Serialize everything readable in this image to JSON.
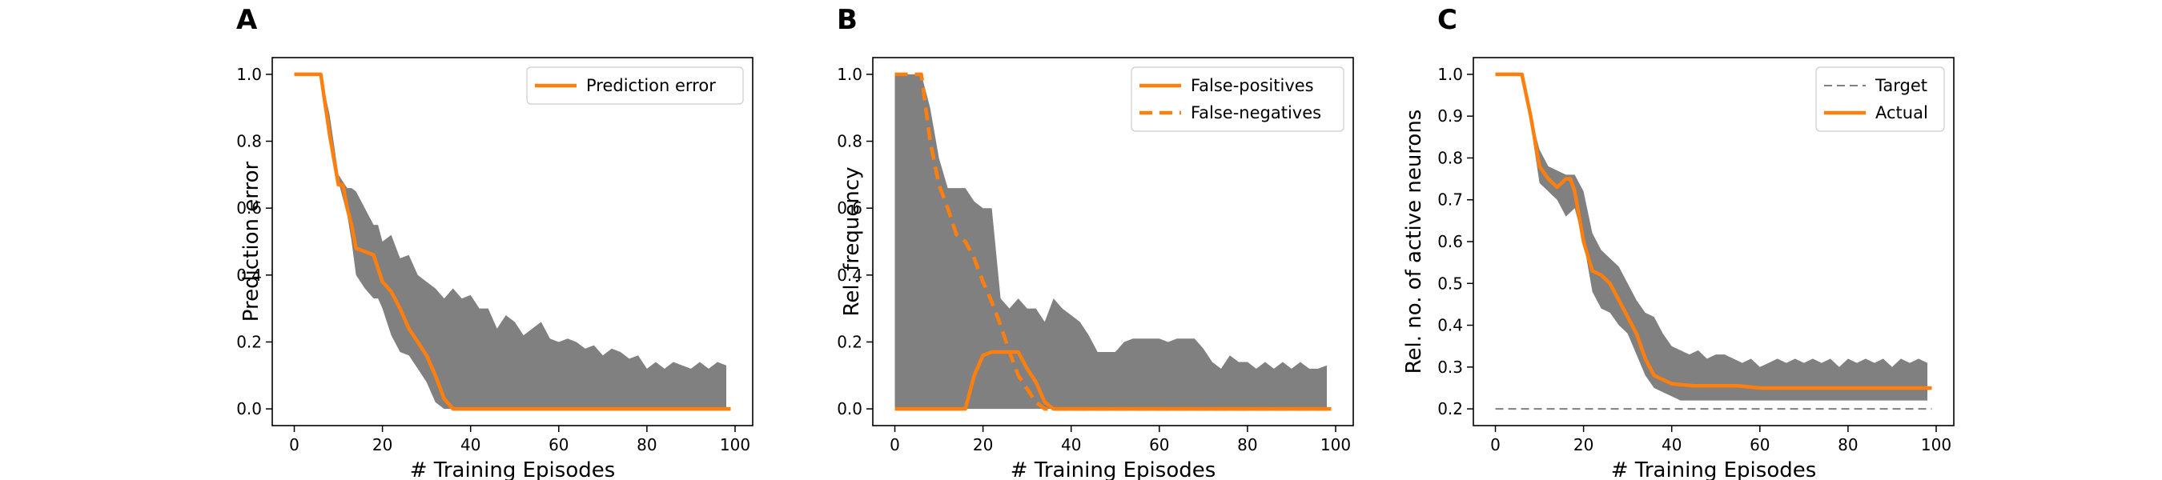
{
  "colors": {
    "line": "#ff7f0e",
    "band": "#808080",
    "target": "#808080",
    "axis": "#000000"
  },
  "chart_data": [
    {
      "type": "line",
      "panel": "A",
      "title": "",
      "xlabel": "# Training Episodes",
      "ylabel": "Prediction error",
      "xlim": [
        -5,
        104
      ],
      "ylim": [
        -0.05,
        1.05
      ],
      "xticks": [
        0,
        20,
        40,
        60,
        80,
        100
      ],
      "yticks": [
        0.0,
        0.2,
        0.4,
        0.6,
        0.8,
        1.0
      ],
      "ytick_labels": [
        "0.0",
        "0.2",
        "0.4",
        "0.6",
        "0.8",
        "1.0"
      ],
      "grid": false,
      "legend": {
        "position": "top-right",
        "entries": [
          {
            "label": "Prediction error",
            "style": "solid"
          }
        ]
      },
      "band": {
        "x": [
          0,
          6,
          8,
          10,
          12,
          13,
          14,
          16,
          18,
          19,
          20,
          22,
          24,
          26,
          28,
          30,
          32,
          34,
          36,
          38,
          40,
          42,
          44,
          46,
          48,
          50,
          52,
          54,
          56,
          58,
          60,
          62,
          64,
          66,
          68,
          70,
          72,
          74,
          76,
          78,
          80,
          82,
          84,
          86,
          88,
          90,
          92,
          94,
          96,
          98
        ],
        "upper": [
          1.0,
          1.0,
          0.88,
          0.7,
          0.66,
          0.66,
          0.65,
          0.6,
          0.55,
          0.55,
          0.5,
          0.52,
          0.45,
          0.46,
          0.4,
          0.38,
          0.36,
          0.33,
          0.36,
          0.33,
          0.34,
          0.3,
          0.3,
          0.24,
          0.28,
          0.26,
          0.22,
          0.24,
          0.26,
          0.21,
          0.2,
          0.21,
          0.2,
          0.18,
          0.19,
          0.16,
          0.18,
          0.17,
          0.15,
          0.16,
          0.12,
          0.14,
          0.12,
          0.14,
          0.13,
          0.12,
          0.14,
          0.12,
          0.14,
          0.13
        ],
        "lower": [
          1.0,
          1.0,
          0.85,
          0.68,
          0.58,
          0.5,
          0.4,
          0.36,
          0.33,
          0.33,
          0.3,
          0.22,
          0.17,
          0.16,
          0.12,
          0.08,
          0.02,
          0.0,
          0.0,
          0.0,
          0.0,
          0.0,
          0.0,
          0.0,
          0.0,
          0.0,
          0.0,
          0.0,
          0.0,
          0.0,
          0.0,
          0.0,
          0.0,
          0.0,
          0.0,
          0.0,
          0.0,
          0.0,
          0.0,
          0.0,
          0.0,
          0.0,
          0.0,
          0.0,
          0.0,
          0.0,
          0.0,
          0.0,
          0.0,
          0.0
        ]
      },
      "series": [
        {
          "name": "Prediction error",
          "style": "solid",
          "x": [
            0,
            6,
            8,
            10,
            11,
            12,
            13,
            14,
            16,
            18,
            19,
            20,
            22,
            24,
            26,
            28,
            30,
            32,
            34,
            36,
            38,
            40,
            50,
            60,
            70,
            80,
            90,
            99
          ],
          "y": [
            1.0,
            1.0,
            0.82,
            0.67,
            0.67,
            0.6,
            0.55,
            0.48,
            0.47,
            0.46,
            0.42,
            0.38,
            0.35,
            0.3,
            0.24,
            0.2,
            0.16,
            0.1,
            0.03,
            0.0,
            0.0,
            0.0,
            0.0,
            0.0,
            0.0,
            0.0,
            0.0,
            0.0
          ]
        }
      ]
    },
    {
      "type": "line",
      "panel": "B",
      "title": "",
      "xlabel": "# Training Episodes",
      "ylabel": "Rel. frequency",
      "xlim": [
        -5,
        104
      ],
      "ylim": [
        -0.05,
        1.05
      ],
      "xticks": [
        0,
        20,
        40,
        60,
        80,
        100
      ],
      "yticks": [
        0.0,
        0.2,
        0.4,
        0.6,
        0.8,
        1.0
      ],
      "ytick_labels": [
        "0.0",
        "0.2",
        "0.4",
        "0.6",
        "0.8",
        "1.0"
      ],
      "grid": false,
      "legend": {
        "position": "top-right",
        "entries": [
          {
            "label": "False-positives",
            "style": "solid"
          },
          {
            "label": "False-negatives",
            "style": "dashed"
          }
        ]
      },
      "band": {
        "x": [
          0,
          6,
          8,
          10,
          12,
          14,
          16,
          18,
          20,
          22,
          24,
          26,
          28,
          30,
          32,
          34,
          36,
          38,
          40,
          42,
          44,
          46,
          48,
          50,
          52,
          54,
          56,
          58,
          60,
          62,
          64,
          66,
          68,
          70,
          72,
          74,
          76,
          78,
          80,
          82,
          84,
          86,
          88,
          90,
          92,
          94,
          96,
          98
        ],
        "upper": [
          1.0,
          1.0,
          0.9,
          0.75,
          0.66,
          0.66,
          0.66,
          0.62,
          0.6,
          0.6,
          0.33,
          0.3,
          0.33,
          0.3,
          0.3,
          0.26,
          0.33,
          0.3,
          0.28,
          0.26,
          0.22,
          0.17,
          0.17,
          0.17,
          0.2,
          0.21,
          0.21,
          0.21,
          0.21,
          0.2,
          0.21,
          0.21,
          0.21,
          0.18,
          0.14,
          0.12,
          0.16,
          0.14,
          0.14,
          0.12,
          0.14,
          0.12,
          0.14,
          0.12,
          0.14,
          0.12,
          0.12,
          0.13
        ],
        "lower": [
          0.0,
          0.0,
          0.0,
          0.0,
          0.0,
          0.0,
          0.0,
          0.0,
          0.0,
          0.0,
          0.0,
          0.0,
          0.0,
          0.0,
          0.0,
          0.0,
          0.0,
          0.0,
          0.0,
          0.0,
          0.0,
          0.0,
          0.0,
          0.0,
          0.0,
          0.0,
          0.0,
          0.0,
          0.0,
          0.0,
          0.0,
          0.0,
          0.0,
          0.0,
          0.0,
          0.0,
          0.0,
          0.0,
          0.0,
          0.0,
          0.0,
          0.0,
          0.0,
          0.0,
          0.0,
          0.0,
          0.0,
          0.0
        ]
      },
      "series": [
        {
          "name": "False-positives",
          "style": "solid",
          "x": [
            0,
            16,
            18,
            20,
            22,
            28,
            30,
            32,
            34,
            36,
            38,
            99
          ],
          "y": [
            0.0,
            0.0,
            0.1,
            0.16,
            0.17,
            0.17,
            0.12,
            0.08,
            0.02,
            0.0,
            0.0,
            0.0
          ]
        },
        {
          "name": "False-negatives",
          "style": "dashed",
          "x": [
            0,
            6,
            8,
            10,
            12,
            14,
            16,
            18,
            20,
            22,
            24,
            26,
            28,
            30,
            32,
            34,
            36,
            99
          ],
          "y": [
            1.0,
            1.0,
            0.8,
            0.67,
            0.6,
            0.52,
            0.5,
            0.45,
            0.38,
            0.32,
            0.25,
            0.17,
            0.1,
            0.06,
            0.02,
            0.0,
            0.0,
            0.0
          ]
        }
      ]
    },
    {
      "type": "line",
      "panel": "C",
      "title": "",
      "xlabel": "# Training Episodes",
      "ylabel": "Rel. no. of active neurons",
      "xlim": [
        -5,
        104
      ],
      "ylim": [
        0.16,
        1.04
      ],
      "xticks": [
        0,
        20,
        40,
        60,
        80,
        100
      ],
      "yticks": [
        0.2,
        0.3,
        0.4,
        0.5,
        0.6,
        0.7,
        0.8,
        0.9,
        1.0
      ],
      "ytick_labels": [
        "0.2",
        "0.3",
        "0.4",
        "0.5",
        "0.6",
        "0.7",
        "0.8",
        "0.9",
        "1.0"
      ],
      "grid": false,
      "legend": {
        "position": "top-right",
        "entries": [
          {
            "label": "Target",
            "style": "dashed"
          },
          {
            "label": "Actual",
            "style": "solid"
          }
        ]
      },
      "band": {
        "x": [
          0,
          6,
          8,
          10,
          12,
          14,
          16,
          18,
          20,
          22,
          24,
          26,
          28,
          30,
          32,
          34,
          36,
          38,
          40,
          42,
          44,
          46,
          48,
          50,
          52,
          54,
          56,
          58,
          60,
          62,
          64,
          66,
          68,
          70,
          72,
          74,
          76,
          78,
          80,
          82,
          84,
          86,
          88,
          90,
          92,
          94,
          96,
          98
        ],
        "upper": [
          1.0,
          1.0,
          0.9,
          0.82,
          0.78,
          0.77,
          0.76,
          0.76,
          0.72,
          0.62,
          0.58,
          0.56,
          0.54,
          0.5,
          0.46,
          0.43,
          0.42,
          0.38,
          0.35,
          0.34,
          0.33,
          0.34,
          0.32,
          0.33,
          0.33,
          0.32,
          0.31,
          0.32,
          0.3,
          0.31,
          0.32,
          0.31,
          0.32,
          0.31,
          0.32,
          0.31,
          0.32,
          0.3,
          0.32,
          0.31,
          0.32,
          0.31,
          0.32,
          0.3,
          0.32,
          0.31,
          0.32,
          0.31
        ],
        "lower": [
          1.0,
          1.0,
          0.88,
          0.74,
          0.72,
          0.7,
          0.66,
          0.68,
          0.6,
          0.48,
          0.44,
          0.43,
          0.4,
          0.38,
          0.33,
          0.28,
          0.25,
          0.24,
          0.23,
          0.22,
          0.22,
          0.22,
          0.22,
          0.22,
          0.22,
          0.22,
          0.22,
          0.22,
          0.22,
          0.22,
          0.22,
          0.22,
          0.22,
          0.22,
          0.22,
          0.22,
          0.22,
          0.22,
          0.22,
          0.22,
          0.22,
          0.22,
          0.22,
          0.22,
          0.22,
          0.22,
          0.22,
          0.22
        ]
      },
      "series": [
        {
          "name": "Target",
          "style": "dashed",
          "x": [
            0,
            99
          ],
          "y": [
            0.2,
            0.2
          ]
        },
        {
          "name": "Actual",
          "style": "solid",
          "x": [
            0,
            6,
            8,
            10,
            12,
            14,
            16,
            17,
            18,
            20,
            22,
            24,
            26,
            28,
            30,
            32,
            34,
            36,
            38,
            40,
            45,
            50,
            55,
            60,
            70,
            80,
            90,
            99
          ],
          "y": [
            1.0,
            1.0,
            0.9,
            0.78,
            0.75,
            0.73,
            0.75,
            0.75,
            0.72,
            0.6,
            0.53,
            0.52,
            0.5,
            0.46,
            0.42,
            0.38,
            0.32,
            0.28,
            0.27,
            0.26,
            0.255,
            0.255,
            0.255,
            0.25,
            0.25,
            0.25,
            0.25,
            0.25
          ]
        }
      ]
    }
  ]
}
